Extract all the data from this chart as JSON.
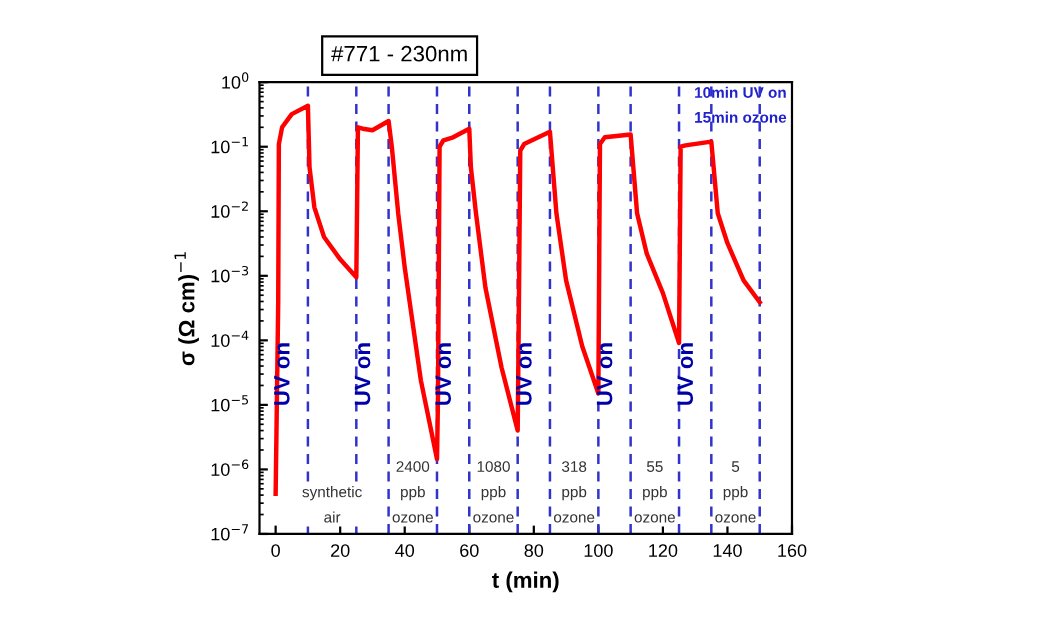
{
  "chart_data": {
    "type": "line",
    "title": "#771 - 230nm",
    "xlabel": "t (min)",
    "ylabel": "σ (Ω cm)$^{−1}$",
    "x": [
      0,
      0.8,
      1,
      2,
      5,
      10,
      10.5,
      12,
      15,
      20,
      25,
      25.5,
      27,
      30,
      35,
      36,
      38,
      40,
      45,
      50,
      50.3,
      50.8,
      52,
      55,
      60,
      60.5,
      62,
      65,
      70,
      75,
      75.3,
      75.8,
      77,
      85,
      87,
      90,
      95,
      100,
      100.5,
      102,
      110,
      112,
      115,
      120,
      125,
      125.5,
      127,
      135,
      137,
      140,
      145,
      150
    ],
    "series": [
      {
        "color": "#ff0000",
        "values": [
          4.2e-07,
          0.0004,
          0.11,
          0.2,
          0.32,
          0.43,
          0.048,
          0.0115,
          0.004,
          0.0018,
          0.00095,
          0.2,
          0.19,
          0.18,
          0.25,
          0.1,
          0.0091,
          0.00135,
          2.4e-05,
          1.45e-06,
          1.2e-05,
          0.1,
          0.126,
          0.14,
          0.19,
          0.048,
          0.01,
          0.00066,
          3.8e-05,
          4e-06,
          0.000126,
          0.087,
          0.11,
          0.17,
          0.0093,
          0.00085,
          8.1e-05,
          1.5e-05,
          0.11,
          0.14,
          0.155,
          0.0093,
          0.0022,
          0.00054,
          9.1e-05,
          0.1,
          0.105,
          0.12,
          0.0093,
          0.0032,
          0.00085,
          0.00039
        ]
      }
    ],
    "log": "y",
    "marker": "none",
    "line_style": "solid",
    "grid": false,
    "legend": false,
    "xlim": [
      -5,
      160
    ],
    "xticks": [
      0,
      20,
      40,
      60,
      80,
      100,
      120,
      140,
      160
    ],
    "ylim": [
      1e-07,
      1
    ],
    "yticks": [
      {
        "value": 1e-07,
        "label": "10$^{−7}$"
      },
      {
        "value": 1e-06,
        "label": "10$^{−6}$"
      },
      {
        "value": 1e-05,
        "label": "10$^{−5}$"
      },
      {
        "value": 0.0001,
        "label": "10$^{−4}$"
      },
      {
        "value": 0.001,
        "label": "10$^{−3}$"
      },
      {
        "value": 0.01,
        "label": "10$^{−2}$"
      },
      {
        "value": 0.1,
        "label": "10$^{−1}$"
      },
      {
        "value": 1,
        "label": "10$^{0}$"
      }
    ],
    "ref_lines": [
      {
        "axis": "x",
        "value": 10,
        "color": "#3333cc",
        "line_style": "dashed"
      },
      {
        "axis": "x",
        "value": 25,
        "color": "#3333cc",
        "line_style": "dashed"
      },
      {
        "axis": "x",
        "value": 35,
        "color": "#3333cc",
        "line_style": "dashed"
      },
      {
        "axis": "x",
        "value": 50,
        "color": "#3333cc",
        "line_style": "dashed"
      },
      {
        "axis": "x",
        "value": 60,
        "color": "#3333cc",
        "line_style": "dashed"
      },
      {
        "axis": "x",
        "value": 75,
        "color": "#3333cc",
        "line_style": "dashed"
      },
      {
        "axis": "x",
        "value": 85,
        "color": "#3333cc",
        "line_style": "dashed"
      },
      {
        "axis": "x",
        "value": 100,
        "color": "#3333cc",
        "line_style": "dashed"
      },
      {
        "axis": "x",
        "value": 110,
        "color": "#3333cc",
        "line_style": "dashed"
      },
      {
        "axis": "x",
        "value": 125,
        "color": "#3333cc",
        "line_style": "dashed"
      },
      {
        "axis": "x",
        "value": 135,
        "color": "#3333cc",
        "line_style": "dashed"
      },
      {
        "axis": "x",
        "value": 150,
        "color": "#3333cc",
        "line_style": "dashed"
      }
    ],
    "annotations": [
      "10min UV on",
      "15min ozone",
      {
        "text": "UV on",
        "x": 2.5,
        "y": 3e-05
      },
      {
        "text": "UV on",
        "x": 27.5,
        "y": 3e-05
      },
      {
        "text": "UV on",
        "x": 52.5,
        "y": 3e-05
      },
      {
        "text": "UV on",
        "x": 77.5,
        "y": 3e-05
      },
      {
        "text": "UV on",
        "x": 102.5,
        "y": 3e-05
      },
      {
        "text": "UV on",
        "x": 127.5,
        "y": 3e-05
      },
      "synthetic\nair",
      "2400\nppb\nozone",
      "1080\nppb\nozone",
      "318\nppb\nozone",
      "55\nppb\nozone",
      "5\nppb\nozone"
    ]
  }
}
